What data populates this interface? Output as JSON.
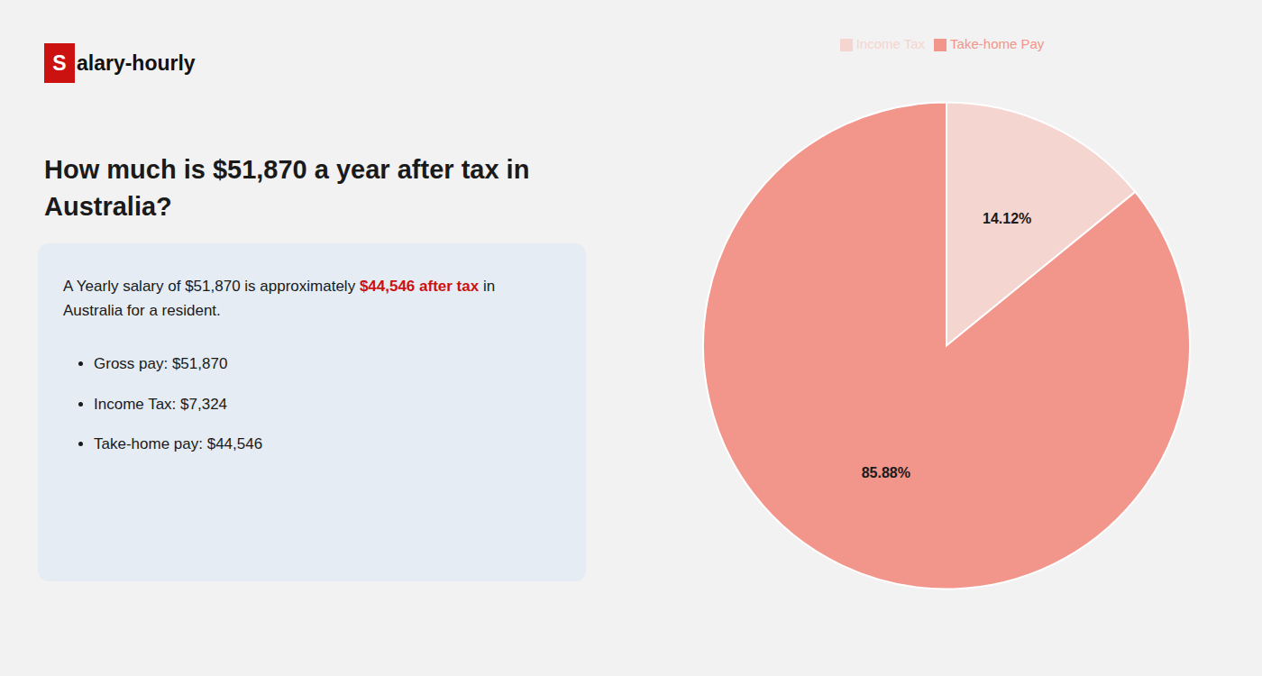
{
  "chart_data": {
    "type": "pie",
    "title": "How much is $51,870 a year after tax in\nAustralia?",
    "annotations": [
      "S",
      "alary-hourly",
      "A Yearly salary of $51,870 is approximately",
      "$44,546 after tax",
      "in",
      "Australia for a resident.",
      "Gross pay: $51,870",
      "Income Tax: $7,324",
      "Take-home pay: $44,546"
    ],
    "categories": [
      "Income Tax",
      "Take-home Pay"
    ],
    "values": [
      14.12,
      85.88
    ],
    "value_labels": [
      "14.12%",
      "85.88%"
    ],
    "colors": [
      "#f5d5d0",
      "#f2958a"
    ],
    "data_labels": true,
    "legend": "top"
  }
}
